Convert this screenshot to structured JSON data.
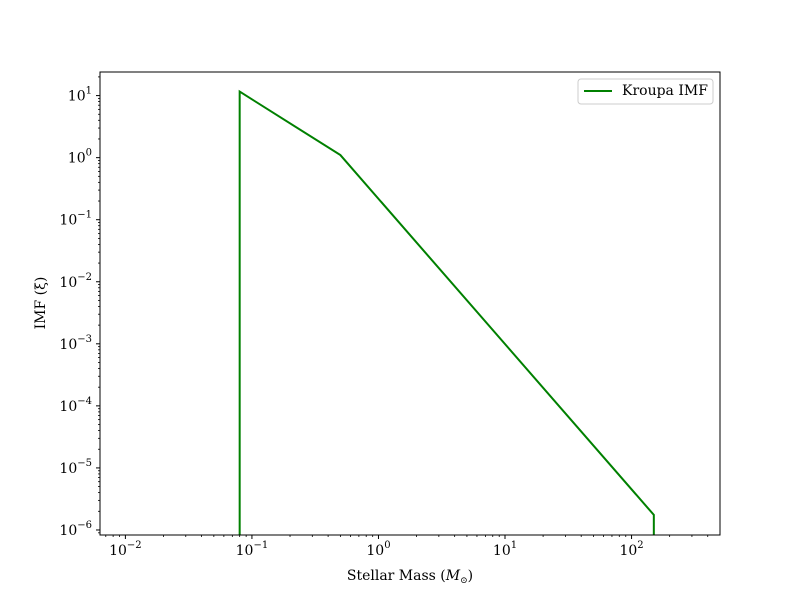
{
  "chart_data": {
    "type": "line",
    "x_scale": "log",
    "y_scale": "log",
    "xlabel_text": "Stellar Mass (",
    "xlabel_symbol": "M",
    "xlabel_sub": "⊙",
    "xlabel_close": ")",
    "ylabel": "IMF (ξ)",
    "xlim": [
      0.0063,
      500
    ],
    "ylim": [
      8.3e-07,
      24
    ],
    "x_ticks": [
      {
        "value": 0.01,
        "base": "10",
        "exp": "−2"
      },
      {
        "value": 0.1,
        "base": "10",
        "exp": "−1"
      },
      {
        "value": 1,
        "base": "10",
        "exp": "0"
      },
      {
        "value": 10,
        "base": "10",
        "exp": "1"
      },
      {
        "value": 100,
        "base": "10",
        "exp": "2"
      }
    ],
    "y_ticks": [
      {
        "value": 1e-06,
        "base": "10",
        "exp": "−6"
      },
      {
        "value": 1e-05,
        "base": "10",
        "exp": "−5"
      },
      {
        "value": 0.0001,
        "base": "10",
        "exp": "−4"
      },
      {
        "value": 0.001,
        "base": "10",
        "exp": "−3"
      },
      {
        "value": 0.01,
        "base": "10",
        "exp": "−2"
      },
      {
        "value": 0.1,
        "base": "10",
        "exp": "−1"
      },
      {
        "value": 1,
        "base": "10",
        "exp": "0"
      },
      {
        "value": 10,
        "base": "10",
        "exp": "1"
      }
    ],
    "grid": false,
    "legend_position": "top-right",
    "series": [
      {
        "name": "Kroupa IMF",
        "color": "#008000",
        "points": [
          {
            "x": 0.08,
            "y": 8.3e-07
          },
          {
            "x": 0.08,
            "y": 11.6
          },
          {
            "x": 0.5,
            "y": 1.1
          },
          {
            "x": 150,
            "y": 1.75e-06
          },
          {
            "x": 150,
            "y": 8.3e-07
          }
        ]
      }
    ]
  }
}
